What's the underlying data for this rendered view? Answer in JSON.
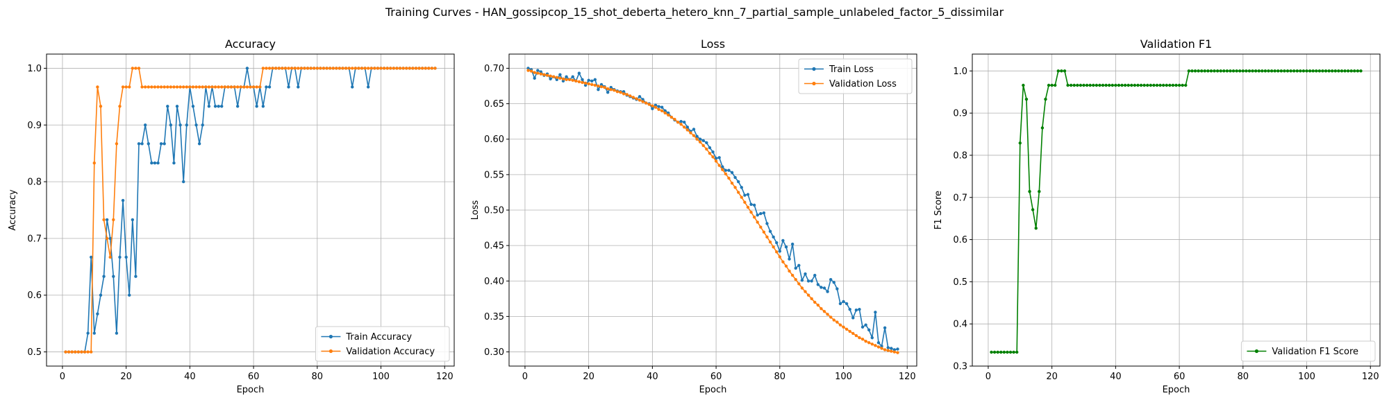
{
  "figure": {
    "suptitle": "Training Curves - HAN_gossipcop_15_shot_deberta_hetero_knn_7_partial_sample_unlabeled_factor_5_dissimilar"
  },
  "colors": {
    "blue": "#1f77b4",
    "orange": "#ff7f0e",
    "green": "#008000",
    "grid": "#b0b0b0"
  },
  "chart_data": [
    {
      "type": "line",
      "title": "Accuracy",
      "xlabel": "Epoch",
      "ylabel": "Accuracy",
      "xlim": [
        -5,
        123
      ],
      "ylim": [
        0.475,
        1.025
      ],
      "xticks": [
        0,
        20,
        40,
        60,
        80,
        100,
        120
      ],
      "yticks": [
        0.5,
        0.6,
        0.7,
        0.8,
        0.9,
        1.0
      ],
      "ytick_labels": [
        "0.5",
        "0.6",
        "0.7",
        "0.8",
        "0.9",
        "1.0"
      ],
      "grid": true,
      "legend_position": "lower-right",
      "series": [
        {
          "name": "Train Accuracy",
          "color": "#1f77b4",
          "x_start": 1,
          "values": [
            0.5,
            0.5,
            0.5,
            0.5,
            0.5,
            0.5,
            0.5,
            0.533,
            0.667,
            0.533,
            0.567,
            0.6,
            0.633,
            0.733,
            0.7,
            0.633,
            0.533,
            0.667,
            0.767,
            0.667,
            0.6,
            0.733,
            0.633,
            0.867,
            0.867,
            0.9,
            0.867,
            0.833,
            0.833,
            0.833,
            0.867,
            0.867,
            0.933,
            0.9,
            0.833,
            0.933,
            0.9,
            0.8,
            0.9,
            0.967,
            0.933,
            0.9,
            0.867,
            0.9,
            0.967,
            0.933,
            0.967,
            0.933,
            0.933,
            0.933,
            0.967,
            0.967,
            0.967,
            0.967,
            0.933,
            0.967,
            0.967,
            1.0,
            0.967,
            0.967,
            0.933,
            0.967,
            0.933,
            0.967,
            0.967,
            1.0,
            1.0,
            1.0,
            1.0,
            1.0,
            0.967,
            1.0,
            1.0,
            0.967,
            1.0,
            1.0,
            1.0,
            1.0,
            1.0,
            1.0,
            1.0,
            1.0,
            1.0,
            1.0,
            1.0,
            1.0,
            1.0,
            1.0,
            1.0,
            1.0,
            0.967,
            1.0,
            1.0,
            1.0,
            1.0,
            0.967,
            1.0,
            1.0,
            1.0,
            1.0,
            1.0,
            1.0,
            1.0,
            1.0,
            1.0,
            1.0,
            1.0,
            1.0,
            1.0,
            1.0,
            1.0,
            1.0,
            1.0,
            1.0,
            1.0,
            1.0,
            1.0
          ]
        },
        {
          "name": "Validation Accuracy",
          "color": "#ff7f0e",
          "x_start": 1,
          "values": [
            0.5,
            0.5,
            0.5,
            0.5,
            0.5,
            0.5,
            0.5,
            0.5,
            0.5,
            0.833,
            0.967,
            0.933,
            0.733,
            0.7,
            0.667,
            0.733,
            0.867,
            0.933,
            0.967,
            0.967,
            0.967,
            1.0,
            1.0,
            1.0,
            0.967,
            0.967,
            0.967,
            0.967,
            0.967,
            0.967,
            0.967,
            0.967,
            0.967,
            0.967,
            0.967,
            0.967,
            0.967,
            0.967,
            0.967,
            0.967,
            0.967,
            0.967,
            0.967,
            0.967,
            0.967,
            0.967,
            0.967,
            0.967,
            0.967,
            0.967,
            0.967,
            0.967,
            0.967,
            0.967,
            0.967,
            0.967,
            0.967,
            0.967,
            0.967,
            0.967,
            0.967,
            0.967,
            1.0,
            1.0,
            1.0,
            1.0,
            1.0,
            1.0,
            1.0,
            1.0,
            1.0,
            1.0,
            1.0,
            1.0,
            1.0,
            1.0,
            1.0,
            1.0,
            1.0,
            1.0,
            1.0,
            1.0,
            1.0,
            1.0,
            1.0,
            1.0,
            1.0,
            1.0,
            1.0,
            1.0,
            1.0,
            1.0,
            1.0,
            1.0,
            1.0,
            1.0,
            1.0,
            1.0,
            1.0,
            1.0,
            1.0,
            1.0,
            1.0,
            1.0,
            1.0,
            1.0,
            1.0,
            1.0,
            1.0,
            1.0,
            1.0,
            1.0,
            1.0,
            1.0,
            1.0,
            1.0,
            1.0
          ]
        }
      ]
    },
    {
      "type": "line",
      "title": "Loss",
      "xlabel": "Epoch",
      "ylabel": "Loss",
      "xlim": [
        -5,
        123
      ],
      "ylim": [
        0.28,
        0.72
      ],
      "xticks": [
        0,
        20,
        40,
        60,
        80,
        100,
        120
      ],
      "yticks": [
        0.3,
        0.35,
        0.4,
        0.45,
        0.5,
        0.55,
        0.6,
        0.65,
        0.7
      ],
      "ytick_labels": [
        "0.30",
        "0.35",
        "0.40",
        "0.45",
        "0.50",
        "0.55",
        "0.60",
        "0.65",
        "0.70"
      ],
      "grid": true,
      "legend_position": "upper-right",
      "series": [
        {
          "name": "Train Loss",
          "color": "#1f77b4",
          "x_start": 1,
          "values": [
            0.7,
            0.698,
            0.686,
            0.697,
            0.695,
            0.69,
            0.692,
            0.685,
            0.688,
            0.684,
            0.691,
            0.682,
            0.688,
            0.684,
            0.688,
            0.682,
            0.693,
            0.684,
            0.676,
            0.683,
            0.682,
            0.684,
            0.67,
            0.677,
            0.674,
            0.666,
            0.673,
            0.67,
            0.668,
            0.667,
            0.667,
            0.662,
            0.66,
            0.658,
            0.656,
            0.66,
            0.656,
            0.651,
            0.65,
            0.643,
            0.648,
            0.646,
            0.645,
            0.64,
            0.637,
            0.631,
            0.627,
            0.624,
            0.625,
            0.624,
            0.617,
            0.611,
            0.614,
            0.604,
            0.6,
            0.598,
            0.595,
            0.588,
            0.582,
            0.573,
            0.574,
            0.561,
            0.556,
            0.556,
            0.553,
            0.546,
            0.54,
            0.532,
            0.521,
            0.522,
            0.508,
            0.507,
            0.493,
            0.495,
            0.496,
            0.481,
            0.47,
            0.462,
            0.454,
            0.442,
            0.457,
            0.448,
            0.431,
            0.452,
            0.418,
            0.422,
            0.401,
            0.41,
            0.4,
            0.4,
            0.408,
            0.395,
            0.391,
            0.39,
            0.385,
            0.402,
            0.398,
            0.389,
            0.368,
            0.371,
            0.368,
            0.36,
            0.348,
            0.359,
            0.36,
            0.335,
            0.338,
            0.331,
            0.32,
            0.356,
            0.313,
            0.308,
            0.334,
            0.306,
            0.305,
            0.303,
            0.304
          ]
        },
        {
          "name": "Validation Loss",
          "color": "#ff7f0e",
          "x_start": 1,
          "values": [
            0.697,
            0.696,
            0.694,
            0.693,
            0.692,
            0.691,
            0.69,
            0.689,
            0.688,
            0.687,
            0.686,
            0.685,
            0.684,
            0.684,
            0.683,
            0.682,
            0.681,
            0.68,
            0.679,
            0.678,
            0.677,
            0.676,
            0.675,
            0.674,
            0.673,
            0.671,
            0.67,
            0.669,
            0.667,
            0.666,
            0.664,
            0.663,
            0.661,
            0.659,
            0.657,
            0.655,
            0.653,
            0.651,
            0.649,
            0.647,
            0.645,
            0.642,
            0.64,
            0.637,
            0.634,
            0.631,
            0.628,
            0.624,
            0.621,
            0.617,
            0.613,
            0.609,
            0.605,
            0.6,
            0.596,
            0.591,
            0.586,
            0.58,
            0.575,
            0.569,
            0.563,
            0.557,
            0.551,
            0.545,
            0.538,
            0.532,
            0.525,
            0.518,
            0.511,
            0.504,
            0.497,
            0.49,
            0.483,
            0.476,
            0.469,
            0.462,
            0.455,
            0.448,
            0.441,
            0.434,
            0.427,
            0.421,
            0.414,
            0.408,
            0.402,
            0.396,
            0.39,
            0.385,
            0.38,
            0.375,
            0.37,
            0.366,
            0.361,
            0.357,
            0.353,
            0.349,
            0.345,
            0.342,
            0.338,
            0.335,
            0.332,
            0.329,
            0.326,
            0.323,
            0.32,
            0.318,
            0.315,
            0.313,
            0.311,
            0.309,
            0.307,
            0.305,
            0.303,
            0.302,
            0.301,
            0.3,
            0.299
          ]
        }
      ]
    },
    {
      "type": "line",
      "title": "Validation F1",
      "xlabel": "Epoch",
      "ylabel": "F1 Score",
      "xlim": [
        -5,
        123
      ],
      "ylim": [
        0.3,
        1.04
      ],
      "xticks": [
        0,
        20,
        40,
        60,
        80,
        100,
        120
      ],
      "yticks": [
        0.3,
        0.4,
        0.5,
        0.6,
        0.7,
        0.8,
        0.9,
        1.0
      ],
      "ytick_labels": [
        "0.3",
        "0.4",
        "0.5",
        "0.6",
        "0.7",
        "0.8",
        "0.9",
        "1.0"
      ],
      "grid": true,
      "legend_position": "lower-right",
      "series": [
        {
          "name": "Validation F1 Score",
          "color": "#008000",
          "x_start": 1,
          "values": [
            0.333,
            0.333,
            0.333,
            0.333,
            0.333,
            0.333,
            0.333,
            0.333,
            0.333,
            0.829,
            0.966,
            0.933,
            0.714,
            0.671,
            0.627,
            0.714,
            0.865,
            0.933,
            0.966,
            0.966,
            0.966,
            1.0,
            1.0,
            1.0,
            0.966,
            0.966,
            0.966,
            0.966,
            0.966,
            0.966,
            0.966,
            0.966,
            0.966,
            0.966,
            0.966,
            0.966,
            0.966,
            0.966,
            0.966,
            0.966,
            0.966,
            0.966,
            0.966,
            0.966,
            0.966,
            0.966,
            0.966,
            0.966,
            0.966,
            0.966,
            0.966,
            0.966,
            0.966,
            0.966,
            0.966,
            0.966,
            0.966,
            0.966,
            0.966,
            0.966,
            0.966,
            0.966,
            1.0,
            1.0,
            1.0,
            1.0,
            1.0,
            1.0,
            1.0,
            1.0,
            1.0,
            1.0,
            1.0,
            1.0,
            1.0,
            1.0,
            1.0,
            1.0,
            1.0,
            1.0,
            1.0,
            1.0,
            1.0,
            1.0,
            1.0,
            1.0,
            1.0,
            1.0,
            1.0,
            1.0,
            1.0,
            1.0,
            1.0,
            1.0,
            1.0,
            1.0,
            1.0,
            1.0,
            1.0,
            1.0,
            1.0,
            1.0,
            1.0,
            1.0,
            1.0,
            1.0,
            1.0,
            1.0,
            1.0,
            1.0,
            1.0,
            1.0,
            1.0,
            1.0,
            1.0,
            1.0,
            1.0
          ]
        }
      ]
    }
  ]
}
